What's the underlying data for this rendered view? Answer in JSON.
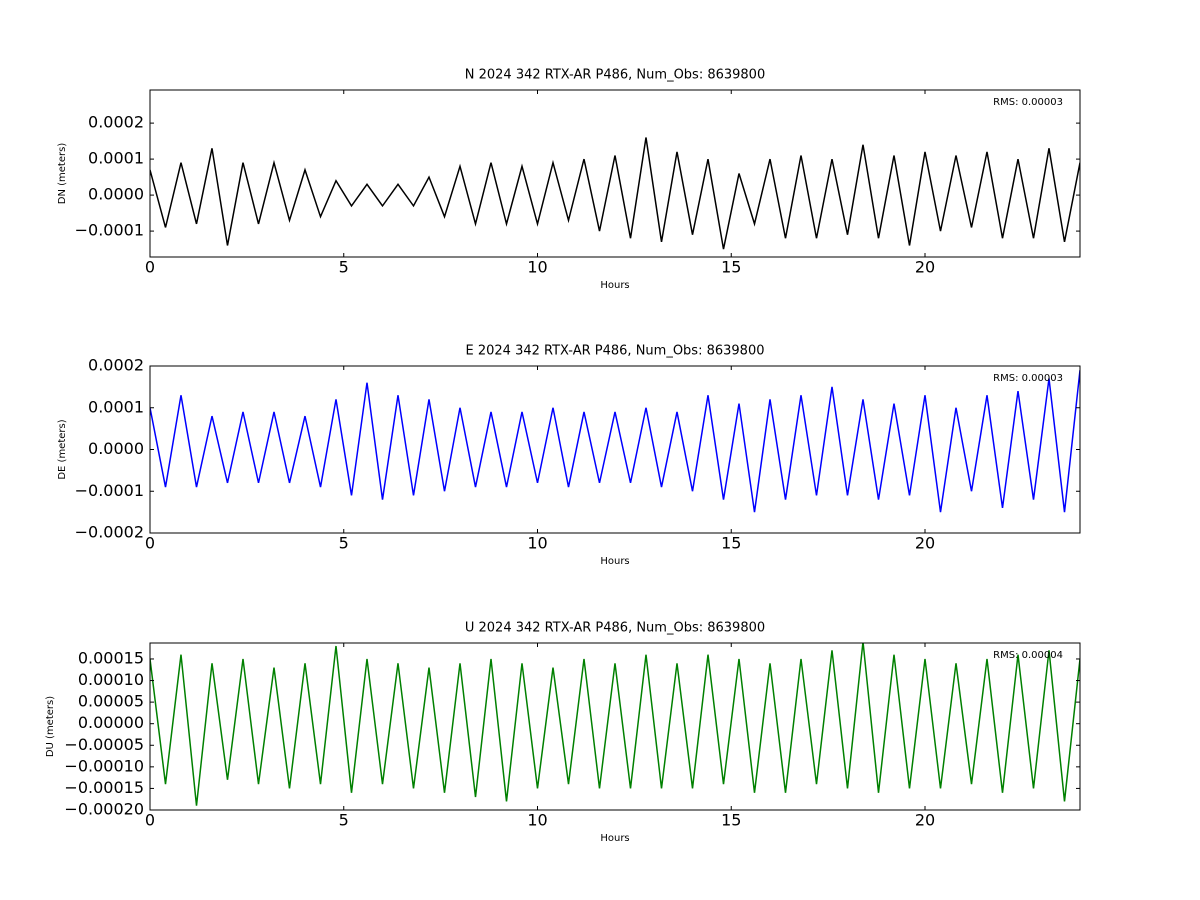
{
  "chart_data": [
    {
      "type": "line",
      "title": "N 2024 342 RTX-AR  P486, Num_Obs: 8639800",
      "xlabel": "Hours",
      "ylabel": "DN (meters)",
      "annotation": {
        "text": "RMS:  0.00003",
        "color": "#0000ff"
      },
      "color": "#000000",
      "x": [
        0,
        0.4,
        0.8,
        1.2,
        1.6,
        2.0,
        2.4,
        2.8,
        3.2,
        3.6,
        4.0,
        4.4,
        4.8,
        5.2,
        5.6,
        6.0,
        6.4,
        6.8,
        7.2,
        7.6,
        8.0,
        8.4,
        8.8,
        9.2,
        9.6,
        10.0,
        10.4,
        10.8,
        11.2,
        11.6,
        12.0,
        12.4,
        12.8,
        13.2,
        13.6,
        14.0,
        14.4,
        14.8,
        15.2,
        15.6,
        16.0,
        16.4,
        16.8,
        17.2,
        17.6,
        18.0,
        18.4,
        18.8,
        19.2,
        19.6,
        20.0,
        20.4,
        20.8,
        21.2,
        21.6,
        22.0,
        22.4,
        22.8,
        23.2,
        23.6,
        24.0
      ],
      "values": [
        7e-05,
        -9e-05,
        9e-05,
        -8e-05,
        0.00013,
        -0.00014,
        9e-05,
        -8e-05,
        9e-05,
        -7e-05,
        7e-05,
        -6e-05,
        4e-05,
        -3e-05,
        3e-05,
        -3e-05,
        3e-05,
        -3e-05,
        5e-05,
        -6e-05,
        8e-05,
        -8e-05,
        9e-05,
        -8e-05,
        8e-05,
        -8e-05,
        9e-05,
        -7e-05,
        0.0001,
        -0.0001,
        0.00011,
        -0.00012,
        0.00016,
        -0.00013,
        0.00012,
        -0.00011,
        0.0001,
        -0.00015,
        6e-05,
        -8e-05,
        0.0001,
        -0.00012,
        0.00011,
        -0.00012,
        0.0001,
        -0.00011,
        0.00014,
        -0.00012,
        0.00011,
        -0.00014,
        0.00012,
        -0.0001,
        0.00011,
        -9e-05,
        0.00012,
        -0.00012,
        0.0001,
        -0.00012,
        0.00013,
        -0.00013,
        9e-05
      ],
      "xlim": [
        0,
        24
      ],
      "xticks": [
        0,
        5,
        10,
        15,
        20
      ],
      "ylim": [
        -0.000172,
        0.000292
      ],
      "yticks": [
        {
          "value": -0.0001,
          "label": "−0.0001"
        },
        {
          "value": 0,
          "label": "0.0000"
        },
        {
          "value": 0.0001,
          "label": "0.0001"
        },
        {
          "value": 0.0002,
          "label": "0.0002"
        }
      ]
    },
    {
      "type": "line",
      "title": "E 2024 342 RTX-AR  P486, Num_Obs: 8639800",
      "xlabel": "Hours",
      "ylabel": "DE (meters)",
      "annotation": {
        "text": "RMS:  0.00003",
        "color": "#0000ff"
      },
      "color": "#0000ff",
      "x": [
        0,
        0.4,
        0.8,
        1.2,
        1.6,
        2.0,
        2.4,
        2.8,
        3.2,
        3.6,
        4.0,
        4.4,
        4.8,
        5.2,
        5.6,
        6.0,
        6.4,
        6.8,
        7.2,
        7.6,
        8.0,
        8.4,
        8.8,
        9.2,
        9.6,
        10.0,
        10.4,
        10.8,
        11.2,
        11.6,
        12.0,
        12.4,
        12.8,
        13.2,
        13.6,
        14.0,
        14.4,
        14.8,
        15.2,
        15.6,
        16.0,
        16.4,
        16.8,
        17.2,
        17.6,
        18.0,
        18.4,
        18.8,
        19.2,
        19.6,
        20.0,
        20.4,
        20.8,
        21.2,
        21.6,
        22.0,
        22.4,
        22.8,
        23.2,
        23.6,
        24.0
      ],
      "values": [
        0.0001,
        -9e-05,
        0.00013,
        -9e-05,
        8e-05,
        -8e-05,
        9e-05,
        -8e-05,
        9e-05,
        -8e-05,
        8e-05,
        -9e-05,
        0.00012,
        -0.00011,
        0.00016,
        -0.00012,
        0.00013,
        -0.00011,
        0.00012,
        -0.0001,
        0.0001,
        -9e-05,
        9e-05,
        -9e-05,
        9e-05,
        -8e-05,
        0.0001,
        -9e-05,
        9e-05,
        -8e-05,
        9e-05,
        -8e-05,
        0.0001,
        -9e-05,
        9e-05,
        -0.0001,
        0.00013,
        -0.00012,
        0.00011,
        -0.00015,
        0.00012,
        -0.00012,
        0.00013,
        -0.00011,
        0.00015,
        -0.00011,
        0.00012,
        -0.00012,
        0.00011,
        -0.00011,
        0.00013,
        -0.00015,
        0.0001,
        -0.0001,
        0.00013,
        -0.00014,
        0.00014,
        -0.00012,
        0.00017,
        -0.00015,
        0.00019
      ],
      "xlim": [
        0,
        24
      ],
      "xticks": [
        0,
        5,
        10,
        15,
        20
      ],
      "ylim": [
        -0.0002,
        0.0002
      ],
      "yticks": [
        {
          "value": -0.0002,
          "label": "−0.0002"
        },
        {
          "value": -0.0001,
          "label": "−0.0001"
        },
        {
          "value": 0,
          "label": "0.0000"
        },
        {
          "value": 0.0001,
          "label": "0.0001"
        },
        {
          "value": 0.0002,
          "label": "0.0002"
        }
      ]
    },
    {
      "type": "line",
      "title": "U 2024 342 RTX-AR  P486, Num_Obs: 8639800",
      "xlabel": "Hours",
      "ylabel": "DU (meters)",
      "annotation": {
        "text": "RMS:  0.00004",
        "color": "#0000ff"
      },
      "color": "#008000",
      "x": [
        0,
        0.4,
        0.8,
        1.2,
        1.6,
        2.0,
        2.4,
        2.8,
        3.2,
        3.6,
        4.0,
        4.4,
        4.8,
        5.2,
        5.6,
        6.0,
        6.4,
        6.8,
        7.2,
        7.6,
        8.0,
        8.4,
        8.8,
        9.2,
        9.6,
        10.0,
        10.4,
        10.8,
        11.2,
        11.6,
        12.0,
        12.4,
        12.8,
        13.2,
        13.6,
        14.0,
        14.4,
        14.8,
        15.2,
        15.6,
        16.0,
        16.4,
        16.8,
        17.2,
        17.6,
        18.0,
        18.4,
        18.8,
        19.2,
        19.6,
        20.0,
        20.4,
        20.8,
        21.2,
        21.6,
        22.0,
        22.4,
        22.8,
        23.2,
        23.6,
        24.0
      ],
      "values": [
        0.00015,
        -0.00014,
        0.00016,
        -0.00019,
        0.00014,
        -0.00013,
        0.00015,
        -0.00014,
        0.00013,
        -0.00015,
        0.00014,
        -0.00014,
        0.00018,
        -0.00016,
        0.00015,
        -0.00014,
        0.00014,
        -0.00015,
        0.00013,
        -0.00016,
        0.00014,
        -0.00017,
        0.00015,
        -0.00018,
        0.00014,
        -0.00015,
        0.00013,
        -0.00014,
        0.00015,
        -0.00015,
        0.00014,
        -0.00015,
        0.00016,
        -0.00015,
        0.00014,
        -0.00015,
        0.00016,
        -0.00014,
        0.00015,
        -0.00016,
        0.00014,
        -0.00016,
        0.00015,
        -0.00014,
        0.00017,
        -0.00015,
        0.00019,
        -0.00016,
        0.00016,
        -0.00015,
        0.00015,
        -0.00015,
        0.00014,
        -0.00014,
        0.00015,
        -0.00016,
        0.00016,
        -0.00015,
        0.00017,
        -0.00018,
        0.00015
      ],
      "xlim": [
        0,
        24
      ],
      "xticks": [
        0,
        5,
        10,
        15,
        20
      ],
      "ylim": [
        -0.0002,
        0.000187
      ],
      "yticks": [
        {
          "value": -0.0002,
          "label": "−0.00020"
        },
        {
          "value": -0.00015,
          "label": "−0.00015"
        },
        {
          "value": -0.0001,
          "label": "−0.00010"
        },
        {
          "value": -5e-05,
          "label": "−0.00005"
        },
        {
          "value": 0,
          "label": "0.00000"
        },
        {
          "value": 5e-05,
          "label": "0.00005"
        },
        {
          "value": 0.0001,
          "label": "0.00010"
        },
        {
          "value": 0.00015,
          "label": "0.00015"
        }
      ]
    }
  ]
}
